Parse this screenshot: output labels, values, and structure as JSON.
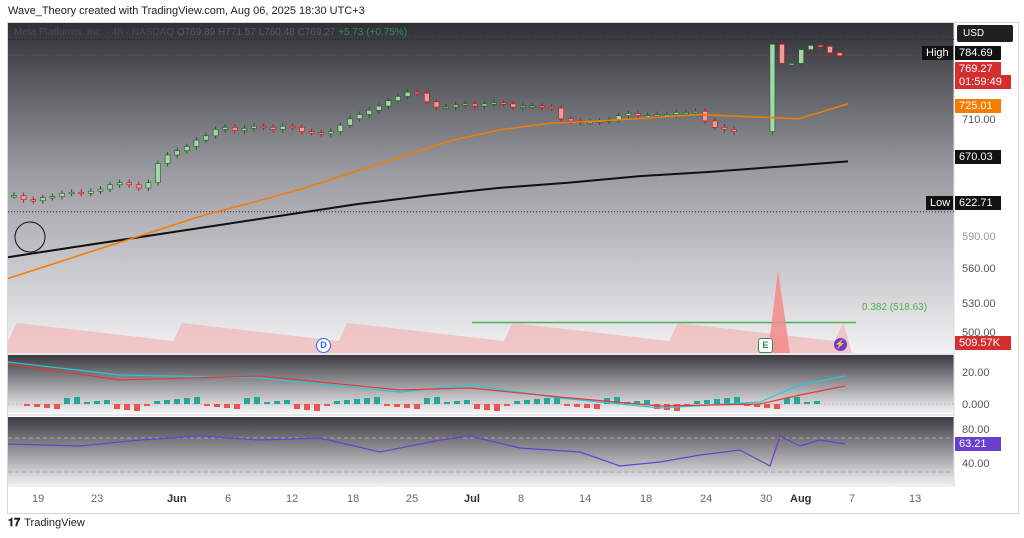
{
  "header": {
    "caption": "Wave_Theory created with TradingView.com, Aug 06, 2025 18:30 UTC+3"
  },
  "legend": {
    "symbol": "Meta Platforms, Inc. · 4h · NASDAQ",
    "open": "O769.89",
    "high": "H771.57",
    "low": "L760.48",
    "close": "C769.27",
    "change": "+5.73 (+0.75%)"
  },
  "currency": "USD",
  "price_tags": {
    "high_label": "High",
    "high_value": "784.69",
    "last_value": "769.27",
    "countdown": "01:59:49",
    "ema_fast": "725.01",
    "ema_slow": "670.03",
    "low_label": "Low",
    "low_value": "622.71",
    "volume": "509.57K",
    "macd": "",
    "rsi": "63.21"
  },
  "price_axis": [
    "710.00",
    "590.00",
    "560.00",
    "530.00",
    "500.00"
  ],
  "macd_axis": [
    "20.00",
    "0.000"
  ],
  "rsi_axis": [
    "80.00",
    "40.00"
  ],
  "fib_label": "0.382 (518.63)",
  "x_axis": [
    {
      "label": "19",
      "bold": false
    },
    {
      "label": "23",
      "bold": false
    },
    {
      "label": "Jun",
      "bold": true
    },
    {
      "label": "6",
      "bold": false
    },
    {
      "label": "12",
      "bold": false
    },
    {
      "label": "18",
      "bold": false
    },
    {
      "label": "25",
      "bold": false
    },
    {
      "label": "Jul",
      "bold": true
    },
    {
      "label": "8",
      "bold": false
    },
    {
      "label": "14",
      "bold": false
    },
    {
      "label": "18",
      "bold": false
    },
    {
      "label": "24",
      "bold": false
    },
    {
      "label": "30",
      "bold": false
    },
    {
      "label": "Aug",
      "bold": true
    },
    {
      "label": "7",
      "bold": false
    },
    {
      "label": "13",
      "bold": false
    }
  ],
  "events": [
    {
      "letter": "D",
      "color": "#2962ff"
    },
    {
      "letter": "E",
      "color": "#2e8b57"
    }
  ],
  "footer": {
    "brand": "TradingView"
  },
  "colors": {
    "up": "#26a69a",
    "down": "#ef5350",
    "ema_fast": "#f57c00",
    "ema_slow": "#111111",
    "fib": "#4caf50",
    "rsi": "#6a3fcf",
    "macd_signal": "#e53935",
    "macd_line": "#26c6da"
  },
  "chart_data": {
    "type": "candlestick",
    "title": "Meta Platforms, Inc. · 4h · NASDAQ",
    "ylim": [
      490,
      800
    ],
    "price_series": [
      638,
      634,
      633,
      636,
      637,
      640,
      641,
      640,
      642,
      644,
      648,
      650,
      648,
      645,
      650,
      668,
      676,
      680,
      684,
      690,
      694,
      700,
      702,
      699,
      701,
      703,
      702,
      700,
      703,
      702,
      698,
      697,
      696,
      698,
      704,
      710,
      714,
      718,
      722,
      727,
      731,
      735,
      734,
      726,
      721,
      721,
      723,
      724,
      722,
      724,
      725,
      724,
      721,
      722,
      722,
      721,
      720,
      710,
      708,
      707,
      707,
      708,
      709,
      713,
      715,
      713,
      713,
      714,
      714,
      716,
      716,
      717,
      708,
      702,
      700,
      698,
      null,
      null,
      null,
      780,
      762,
      762,
      775,
      779,
      778,
      772,
      769.27
    ],
    "ema_fast": {
      "name": "",
      "values": [
        560,
        575,
        590,
        605,
        620,
        632,
        645,
        660,
        675,
        690,
        700,
        706,
        708,
        711,
        714,
        712,
        710,
        724
      ]
    },
    "ema_slow": {
      "name": "",
      "values": [
        580,
        590,
        600,
        610,
        620,
        630,
        638,
        645,
        650,
        656,
        660,
        665,
        670
      ]
    },
    "fib_level": 518.63,
    "annotation": "0.382 (518.63)"
  }
}
